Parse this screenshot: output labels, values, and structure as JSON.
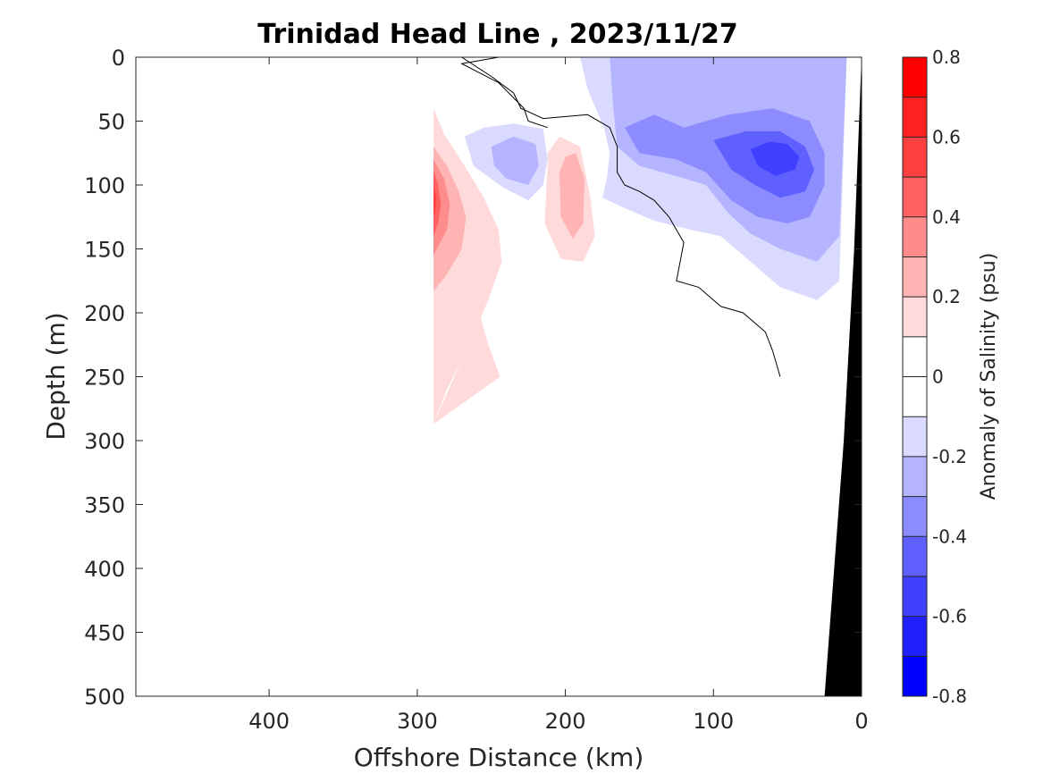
{
  "chart_data": {
    "type": "heatmap",
    "subtype": "filled-contour section",
    "title": "Trinidad Head Line , 2023/11/27",
    "xlabel": "Offshore Distance (km)",
    "ylabel": "Depth (m)",
    "xlim": [
      490,
      0
    ],
    "ylim": [
      0,
      500
    ],
    "x_reversed": true,
    "y_reversed": true,
    "x_ticks": [
      400,
      300,
      200,
      100,
      0
    ],
    "y_ticks": [
      0,
      50,
      100,
      150,
      200,
      250,
      300,
      350,
      400,
      450,
      500
    ],
    "colorbar": {
      "label": "Anomaly of Salinity (psu)",
      "range": [
        -0.8,
        0.8
      ],
      "ticks": [
        -0.8,
        -0.6,
        -0.4,
        -0.2,
        0,
        0.2,
        0.4,
        0.6,
        0.8
      ],
      "tick_labels": [
        "-0.8",
        "-0.6",
        "-0.4",
        "-0.2",
        "0",
        "0.2",
        "0.4",
        "0.6",
        "0.8"
      ],
      "levels": [
        {
          "from": 0.7,
          "to": 0.8,
          "color": "#ff0000"
        },
        {
          "from": 0.6,
          "to": 0.7,
          "color": "#ff2020"
        },
        {
          "from": 0.5,
          "to": 0.6,
          "color": "#ff4040"
        },
        {
          "from": 0.4,
          "to": 0.5,
          "color": "#ff6060"
        },
        {
          "from": 0.3,
          "to": 0.4,
          "color": "#ff8c8c"
        },
        {
          "from": 0.2,
          "to": 0.3,
          "color": "#ffb4b4"
        },
        {
          "from": 0.1,
          "to": 0.2,
          "color": "#ffdada"
        },
        {
          "from": 0.0,
          "to": 0.1,
          "color": "#ffffff"
        },
        {
          "from": -0.1,
          "to": 0.0,
          "color": "#ffffff"
        },
        {
          "from": -0.2,
          "to": -0.1,
          "color": "#dadaff"
        },
        {
          "from": -0.3,
          "to": -0.2,
          "color": "#b4b4ff"
        },
        {
          "from": -0.4,
          "to": -0.3,
          "color": "#8c8cff"
        },
        {
          "from": -0.5,
          "to": -0.4,
          "color": "#6060ff"
        },
        {
          "from": -0.6,
          "to": -0.5,
          "color": "#4040ff"
        },
        {
          "from": -0.7,
          "to": -0.6,
          "color": "#2020ff"
        },
        {
          "from": -0.8,
          "to": -0.7,
          "color": "#0000ff"
        }
      ]
    },
    "regions": [
      {
        "anomaly": 0.1,
        "color": "#ffdada",
        "points": [
          [
            289,
            40
          ],
          [
            287,
            80
          ],
          [
            280,
            110
          ],
          [
            272,
            140
          ],
          [
            268,
            160
          ],
          [
            264,
            175
          ],
          [
            258,
            200
          ],
          [
            252,
            225
          ],
          [
            244,
            250
          ],
          [
            289,
            287
          ],
          [
            289,
            287
          ],
          [
            275,
            250
          ],
          [
            262,
            215
          ],
          [
            268,
            195
          ],
          [
            275,
            150
          ],
          [
            280,
            110
          ],
          [
            272,
            160
          ]
        ]
      },
      {
        "anomaly": 0.1,
        "color": "#ffdada",
        "points": [
          [
            289,
            40
          ],
          [
            282,
            60
          ],
          [
            268,
            85
          ],
          [
            255,
            110
          ],
          [
            245,
            135
          ],
          [
            243,
            160
          ],
          [
            252,
            190
          ],
          [
            265,
            225
          ],
          [
            280,
            260
          ],
          [
            289,
            287
          ]
        ]
      },
      {
        "anomaly": 0.2,
        "color": "#ffb4b4",
        "points": [
          [
            289,
            70
          ],
          [
            280,
            85
          ],
          [
            272,
            105
          ],
          [
            267,
            125
          ],
          [
            270,
            150
          ],
          [
            280,
            170
          ],
          [
            289,
            183
          ]
        ]
      },
      {
        "anomaly": 0.3,
        "color": "#ff8c8c",
        "points": [
          [
            289,
            80
          ],
          [
            282,
            95
          ],
          [
            278,
            115
          ],
          [
            280,
            135
          ],
          [
            289,
            155
          ]
        ]
      },
      {
        "anomaly": 0.4,
        "color": "#ff6060",
        "points": [
          [
            289,
            88
          ],
          [
            286,
            100
          ],
          [
            284,
            115
          ],
          [
            286,
            130
          ],
          [
            289,
            140
          ]
        ]
      },
      {
        "anomaly": 0.5,
        "color": "#ff4040",
        "points": [
          [
            289,
            100
          ],
          [
            287,
            110
          ],
          [
            288,
            122
          ],
          [
            289,
            125
          ]
        ]
      },
      {
        "anomaly": 0.1,
        "color": "#ffdada",
        "points": [
          [
            212,
            85
          ],
          [
            214,
            130
          ],
          [
            203,
            158
          ],
          [
            188,
            160
          ],
          [
            180,
            140
          ],
          [
            183,
            110
          ],
          [
            190,
            70
          ],
          [
            204,
            62
          ],
          [
            212,
            75
          ]
        ]
      },
      {
        "anomaly": 0.2,
        "color": "#ffb4b4",
        "points": [
          [
            204,
            90
          ],
          [
            203,
            125
          ],
          [
            195,
            142
          ],
          [
            188,
            130
          ],
          [
            187,
            95
          ],
          [
            193,
            75
          ],
          [
            200,
            78
          ]
        ]
      },
      {
        "anomaly": -0.1,
        "color": "#dadaff",
        "points": [
          [
            268,
            62
          ],
          [
            255,
            55
          ],
          [
            235,
            52
          ],
          [
            215,
            56
          ],
          [
            212,
            80
          ],
          [
            215,
            100
          ],
          [
            225,
            112
          ],
          [
            242,
            102
          ],
          [
            262,
            85
          ]
        ]
      },
      {
        "anomaly": -0.2,
        "color": "#b4b4ff",
        "points": [
          [
            250,
            70
          ],
          [
            235,
            62
          ],
          [
            220,
            68
          ],
          [
            218,
            85
          ],
          [
            225,
            100
          ],
          [
            240,
            95
          ],
          [
            248,
            85
          ]
        ]
      },
      {
        "anomaly": -0.1,
        "color": "#dadaff",
        "points": [
          [
            190,
            0
          ],
          [
            185,
            25
          ],
          [
            174,
            55
          ],
          [
            170,
            75
          ],
          [
            172,
            95
          ],
          [
            175,
            110
          ],
          [
            160,
            118
          ],
          [
            140,
            128
          ],
          [
            115,
            135
          ],
          [
            95,
            140
          ],
          [
            75,
            160
          ],
          [
            55,
            180
          ],
          [
            30,
            190
          ],
          [
            15,
            175
          ],
          [
            10,
            0
          ]
        ]
      },
      {
        "anomaly": -0.2,
        "color": "#b4b4ff",
        "points": [
          [
            170,
            0
          ],
          [
            168,
            35
          ],
          [
            165,
            70
          ],
          [
            150,
            85
          ],
          [
            128,
            92
          ],
          [
            105,
            100
          ],
          [
            90,
            122
          ],
          [
            75,
            138
          ],
          [
            55,
            150
          ],
          [
            30,
            160
          ],
          [
            15,
            140
          ],
          [
            10,
            0
          ],
          [
            125,
            0
          ],
          [
            120,
            20
          ],
          [
            105,
            30
          ],
          [
            80,
            28
          ],
          [
            60,
            18
          ],
          [
            55,
            0
          ]
        ]
      },
      {
        "anomaly": -0.3,
        "color": "#8c8cff",
        "points": [
          [
            160,
            55
          ],
          [
            150,
            75
          ],
          [
            125,
            80
          ],
          [
            105,
            90
          ],
          [
            88,
            112
          ],
          [
            70,
            125
          ],
          [
            50,
            130
          ],
          [
            35,
            125
          ],
          [
            25,
            100
          ],
          [
            25,
            75
          ],
          [
            35,
            50
          ],
          [
            60,
            40
          ],
          [
            90,
            45
          ],
          [
            120,
            55
          ],
          [
            140,
            45
          ]
        ]
      },
      {
        "anomaly": -0.4,
        "color": "#6060ff",
        "points": [
          [
            100,
            65
          ],
          [
            88,
            88
          ],
          [
            72,
            100
          ],
          [
            55,
            110
          ],
          [
            38,
            105
          ],
          [
            32,
            88
          ],
          [
            38,
            70
          ],
          [
            55,
            58
          ],
          [
            78,
            58
          ]
        ]
      },
      {
        "anomaly": -0.5,
        "color": "#4040ff",
        "points": [
          [
            75,
            72
          ],
          [
            70,
            85
          ],
          [
            58,
            93
          ],
          [
            45,
            88
          ],
          [
            42,
            78
          ],
          [
            50,
            68
          ],
          [
            62,
            66
          ]
        ]
      }
    ],
    "zero_contours": [
      [
        [
          270,
          0
        ],
        [
          250,
          15
        ],
        [
          235,
          28
        ],
        [
          230,
          40
        ],
        [
          215,
          48
        ],
        [
          185,
          45
        ],
        [
          170,
          55
        ],
        [
          165,
          70
        ],
        [
          165,
          90
        ],
        [
          160,
          100
        ],
        [
          150,
          105
        ],
        [
          140,
          112
        ],
        [
          130,
          125
        ],
        [
          120,
          145
        ],
        [
          125,
          175
        ],
        [
          110,
          180
        ],
        [
          100,
          190
        ],
        [
          95,
          195
        ],
        [
          80,
          200
        ],
        [
          65,
          215
        ],
        [
          60,
          230
        ],
        [
          55,
          250
        ]
      ],
      [
        [
          245,
          0
        ],
        [
          270,
          5
        ],
        [
          245,
          20
        ],
        [
          228,
          40
        ],
        [
          225,
          50
        ],
        [
          212,
          55
        ]
      ]
    ],
    "land": {
      "color": "#000000",
      "points": [
        [
          25,
          500
        ],
        [
          12,
          300
        ],
        [
          5,
          150
        ],
        [
          0,
          0
        ],
        [
          0,
          500
        ]
      ]
    }
  }
}
